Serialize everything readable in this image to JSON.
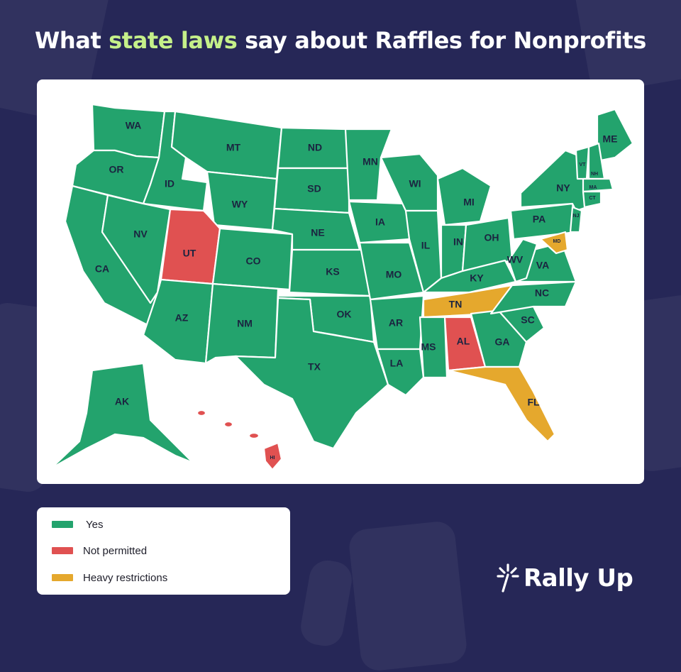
{
  "title": {
    "prefix": "What ",
    "highlight": "state laws",
    "suffix": " say about Raffles for Nonprofits"
  },
  "colors": {
    "background": "#262757",
    "highlight": "#c5f089",
    "yes": "#23a36d",
    "not_permitted": "#e05151",
    "heavy_restrictions": "#e5a82d"
  },
  "legend": {
    "yes": "Yes",
    "not_permitted": "Not permitted",
    "heavy_restrictions": "Heavy restrictions"
  },
  "states": {
    "WA": "yes",
    "OR": "yes",
    "CA": "yes",
    "ID": "yes",
    "NV": "yes",
    "MT": "yes",
    "WY": "yes",
    "UT": "not_permitted",
    "CO": "yes",
    "AZ": "yes",
    "NM": "yes",
    "ND": "yes",
    "SD": "yes",
    "NE": "yes",
    "KS": "yes",
    "OK": "yes",
    "TX": "yes",
    "MN": "yes",
    "IA": "yes",
    "MO": "yes",
    "AR": "yes",
    "LA": "yes",
    "WI": "yes",
    "IL": "yes",
    "MI": "yes",
    "IN": "yes",
    "OH": "yes",
    "KY": "yes",
    "TN": "heavy_restrictions",
    "MS": "yes",
    "AL": "not_permitted",
    "GA": "yes",
    "FL": "heavy_restrictions",
    "SC": "yes",
    "NC": "yes",
    "VA": "yes",
    "WV": "yes",
    "PA": "yes",
    "NY": "yes",
    "ME": "yes",
    "VT": "yes",
    "NH": "yes",
    "MA": "yes",
    "CT": "yes",
    "NJ": "yes",
    "MD": "heavy_restrictions",
    "AK": "yes",
    "HI": "not_permitted"
  },
  "logo": {
    "text": "Rally Up",
    "icon": "sparkle-wand-icon"
  }
}
